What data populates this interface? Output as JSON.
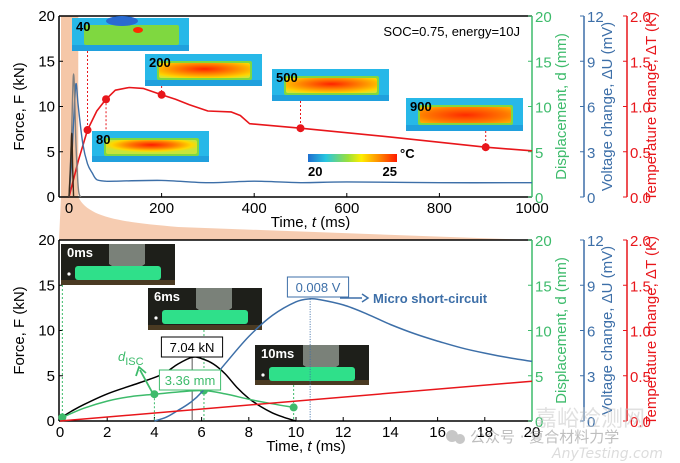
{
  "chart_data": [
    {
      "type": "line",
      "panel": "top",
      "annotation": "SOC=0.75, energy=10J",
      "xlabel": "Time, t (ms)",
      "xlim": [
        0,
        1000
      ],
      "xticks": [
        0,
        200,
        400,
        600,
        800,
        1000
      ],
      "axes": {
        "force": {
          "label": "Force, F (kN)",
          "ylim": [
            0,
            20
          ],
          "ticks": [
            0,
            5,
            10,
            15,
            20
          ],
          "color": "#000000",
          "side": "left"
        },
        "displacement": {
          "label": "Displacement, d (mm)",
          "ylim": [
            0,
            20
          ],
          "ticks": [
            0,
            5,
            10,
            15,
            20
          ],
          "color": "#3dbb6b",
          "side": "right"
        },
        "voltage": {
          "label": "Voltage change, ΔU (mV)",
          "ylim": [
            0,
            12
          ],
          "ticks": [
            0,
            3,
            6,
            9,
            12
          ],
          "color": "#3d6fa8",
          "side": "right"
        },
        "temperature": {
          "label": "Temperature change, ΔT (K)",
          "ylim": [
            0,
            2.0
          ],
          "ticks": [
            "0.0",
            "0.5",
            "1.0",
            "1.5",
            "2.0"
          ],
          "color": "#e8161b",
          "side": "right"
        }
      },
      "highlight_band": {
        "x_range": [
          0,
          20
        ],
        "color": "#f5c7a8"
      },
      "series": [
        {
          "name": "Temperature change",
          "axis": "temperature",
          "color": "#e8161b",
          "x": [
            0,
            20,
            40,
            60,
            80,
            100,
            130,
            160,
            200,
            230,
            260,
            300,
            350,
            370,
            390,
            500,
            700,
            900,
            1000
          ],
          "y": [
            0,
            0.4,
            0.74,
            0.95,
            1.08,
            1.18,
            1.21,
            1.2,
            1.13,
            1.08,
            1.02,
            0.95,
            0.94,
            0.9,
            0.81,
            0.76,
            0.66,
            0.55,
            0.51
          ],
          "markers": [
            {
              "x": 40,
              "y": 0.74
            },
            {
              "x": 80,
              "y": 1.08
            },
            {
              "x": 200,
              "y": 1.13
            },
            {
              "x": 500,
              "y": 0.76
            },
            {
              "x": 900,
              "y": 0.55
            }
          ]
        },
        {
          "name": "Voltage change",
          "axis": "voltage",
          "color": "#3d6fa8",
          "x": [
            0,
            5,
            10,
            15,
            20,
            30,
            40,
            50,
            60,
            80,
            100,
            200,
            300,
            400,
            500,
            600,
            800,
            1000
          ],
          "y": [
            0,
            2,
            5,
            7.5,
            6,
            3.5,
            2.2,
            1.6,
            1.15,
            1.05,
            1.05,
            1.1,
            0.95,
            1.05,
            0.95,
            1.0,
            0.95,
            0.95
          ]
        },
        {
          "name": "Force (impact)",
          "axis": "force",
          "color": "#808080",
          "x": [
            0,
            5,
            10,
            15,
            20,
            25
          ],
          "y": [
            0,
            6,
            13.6,
            6,
            1,
            0
          ]
        },
        {
          "name": "Force",
          "axis": "force",
          "color": "#3a2a1a",
          "x": [
            0,
            3,
            6,
            8,
            10
          ],
          "y": [
            0,
            3,
            7.04,
            3,
            0
          ]
        }
      ],
      "insets": [
        {
          "label": "40",
          "time_ms": 40
        },
        {
          "label": "80",
          "time_ms": 80
        },
        {
          "label": "200",
          "time_ms": 200
        },
        {
          "label": "500",
          "time_ms": 500
        },
        {
          "label": "900",
          "time_ms": 900
        }
      ],
      "colorbar": {
        "min_label": "20",
        "max_label": "25",
        "unit": "°C",
        "colors": [
          "#1f6fd0",
          "#27c6e0",
          "#9be03a",
          "#ffee00",
          "#ff8a00",
          "#ff1a00"
        ]
      }
    },
    {
      "type": "line",
      "panel": "bottom",
      "xlabel": "Time, t (ms)",
      "xlim": [
        0,
        20
      ],
      "xticks": [
        0,
        2,
        4,
        6,
        8,
        10,
        12,
        14,
        16,
        18,
        20
      ],
      "axes": {
        "force": {
          "label": "Force, F (kN)",
          "ylim": [
            0,
            20
          ],
          "ticks": [
            0,
            5,
            10,
            15,
            20
          ],
          "color": "#000000",
          "side": "left"
        },
        "displacement": {
          "label": "Displacement, d (mm)",
          "ylim": [
            0,
            20
          ],
          "ticks": [
            0,
            5,
            10,
            15,
            20
          ],
          "color": "#3dbb6b",
          "side": "right"
        },
        "voltage": {
          "label": "Voltage change, ΔU (mV)",
          "ylim": [
            0,
            12
          ],
          "ticks": [
            0,
            3,
            6,
            9,
            12
          ],
          "color": "#3d6fa8",
          "side": "right"
        },
        "temperature": {
          "label": "Temperature change, ΔT (K)",
          "ylim": [
            0,
            2.0
          ],
          "ticks": [
            "0.0",
            "0.5",
            "1.0",
            "1.5",
            "2.0"
          ],
          "color": "#e8161b",
          "side": "right"
        }
      },
      "series": [
        {
          "name": "Force",
          "axis": "force",
          "color": "#000000",
          "x": [
            0,
            0.5,
            1,
            2,
            3,
            4,
            4.5,
            5,
            5.6,
            6,
            6.5,
            7,
            7.5,
            8,
            8.5,
            9,
            9.5,
            10
          ],
          "y": [
            0.3,
            1.1,
            1.8,
            3,
            3.9,
            4.8,
            5.4,
            6.3,
            7.04,
            6.9,
            6.3,
            5.2,
            3.7,
            2.5,
            1.6,
            0.9,
            0.4,
            0
          ]
        },
        {
          "name": "Displacement",
          "axis": "displacement",
          "color": "#3dbb6b",
          "x": [
            0.1,
            1,
            2,
            3,
            4,
            5,
            6.1,
            7,
            8,
            9,
            9.9
          ],
          "y": [
            0.4,
            1.4,
            2.2,
            2.7,
            2.96,
            3.2,
            3.36,
            3.0,
            2.4,
            1.9,
            1.5
          ],
          "markers": [
            {
              "x": 0.1,
              "y": 0.4
            },
            {
              "x": 4,
              "y": 2.96
            },
            {
              "x": 6.1,
              "y": 3.36
            },
            {
              "x": 9.9,
              "y": 1.5
            }
          ]
        },
        {
          "name": "Voltage change",
          "axis": "voltage",
          "color": "#3d6fa8",
          "x": [
            4,
            4.5,
            5,
            5.5,
            6,
            7,
            8,
            9,
            10,
            10.6,
            11,
            12,
            13,
            14,
            15,
            16,
            17,
            18,
            19,
            20
          ],
          "y": [
            0,
            0.25,
            0.7,
            1.2,
            1.9,
            3.8,
            5.6,
            7.0,
            7.9,
            8.1,
            8.05,
            7.7,
            7.1,
            6.4,
            5.8,
            5.3,
            4.85,
            4.5,
            4.2,
            3.95
          ]
        },
        {
          "name": "Temperature change",
          "axis": "temperature",
          "color": "#e8161b",
          "x": [
            0,
            20
          ],
          "y": [
            0,
            0.44
          ]
        }
      ],
      "annotations": {
        "peak_force": "7.04 kN",
        "peak_force_time_ms": 5.6,
        "displacement_at_isc": "3.36 mm",
        "peak_voltage": "0.008 V",
        "peak_voltage_time_ms": 10.6,
        "micro_short_circuit": "Micro short-circuit",
        "d_isc_symbol": "d",
        "d_isc_subscript": "ISC"
      },
      "insets": [
        {
          "label": "0ms",
          "time_ms": 0
        },
        {
          "label": "6ms",
          "time_ms": 6
        },
        {
          "label": "10ms",
          "time_ms": 10
        }
      ]
    }
  ],
  "watermark": {
    "line1": "公众号 · 复合材料力学",
    "line2": "嘉峪检测网",
    "line3": "AnyTesting.com"
  }
}
